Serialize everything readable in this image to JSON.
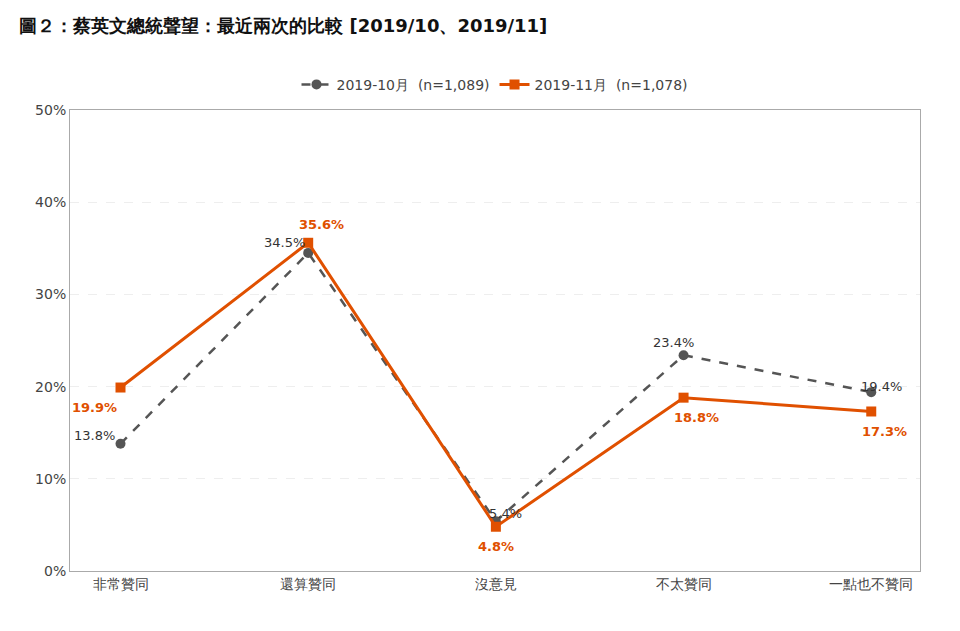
{
  "chart_data": {
    "type": "line",
    "title": "圖２：蔡英文總統聲望：最近兩次的比較 [2019/10、2019/11]",
    "categories": [
      "非常贊同",
      "還算贊同",
      "沒意見",
      "不太贊同",
      "一點也不贊同"
    ],
    "series": [
      {
        "name": "2019-10月  (n=1,089)",
        "color": "#555555",
        "marker": "circle",
        "line_style": "dashed",
        "values": [
          13.8,
          34.5,
          5.4,
          23.4,
          19.4
        ],
        "value_labels": [
          "13.8%",
          "34.5%",
          "5.4%",
          "23.4%",
          "19.4%"
        ]
      },
      {
        "name": "2019-11月  (n=1,078)",
        "color": "#E05000",
        "marker": "square",
        "line_style": "solid",
        "values": [
          19.9,
          35.6,
          4.8,
          18.8,
          17.3
        ],
        "value_labels": [
          "19.9%",
          "35.6%",
          "4.8%",
          "18.8%",
          "17.3%"
        ]
      }
    ],
    "ylim": [
      0,
      50
    ],
    "yticks": [
      {
        "value": 0,
        "label": "0%"
      },
      {
        "value": 10,
        "label": "10%"
      },
      {
        "value": 20,
        "label": "20%"
      },
      {
        "value": 30,
        "label": "30%"
      },
      {
        "value": 40,
        "label": "40%"
      },
      {
        "value": 50,
        "label": "50%"
      }
    ],
    "grid": true,
    "legend": "top",
    "data_labels": true
  }
}
